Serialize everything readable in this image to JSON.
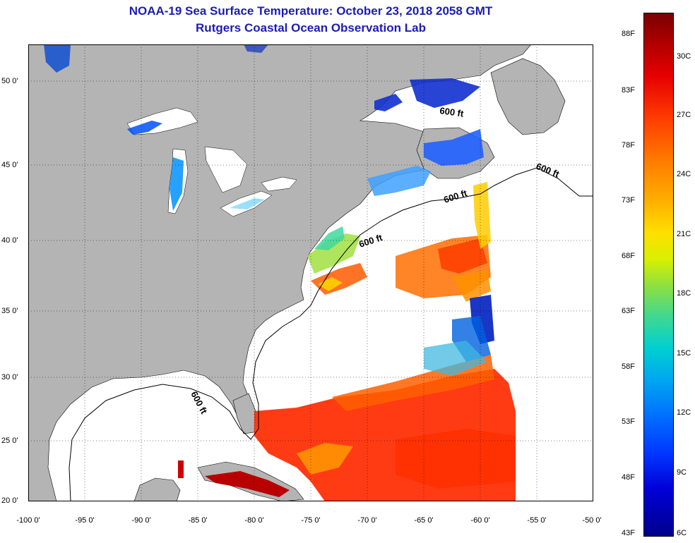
{
  "title": {
    "line1": "NOAA-19 Sea Surface Temperature:  October 23, 2018 2058 GMT",
    "line2": "Rutgers Coastal Ocean Observation Lab"
  },
  "axes": {
    "x_ticks": [
      "-100 0'",
      "-95 0'",
      "-90 0'",
      "-85 0'",
      "-80 0'",
      "-75 0'",
      "-70 0'",
      "-65 0'",
      "-60 0'",
      "-55 0'",
      "-50 0'"
    ],
    "y_ticks": [
      "50 0'",
      "45 0'",
      "40 0'",
      "35 0'",
      "30 0'",
      "25 0'",
      "20 0'"
    ]
  },
  "contour_labels": [
    "600 ft",
    "600 ft",
    "600 ft",
    "600 ft",
    "600 ft"
  ],
  "colorbar": {
    "fahrenheit": [
      "88F",
      "83F",
      "78F",
      "73F",
      "68F",
      "63F",
      "58F",
      "53F",
      "48F",
      "43F"
    ],
    "celsius": [
      "30C",
      "27C",
      "24C",
      "21C",
      "18C",
      "15C",
      "12C",
      "9C",
      "6C"
    ]
  },
  "colors": {
    "land": "#b4b4b4",
    "ocean_nodata": "#ffffff",
    "title": "#1c1cb4"
  }
}
